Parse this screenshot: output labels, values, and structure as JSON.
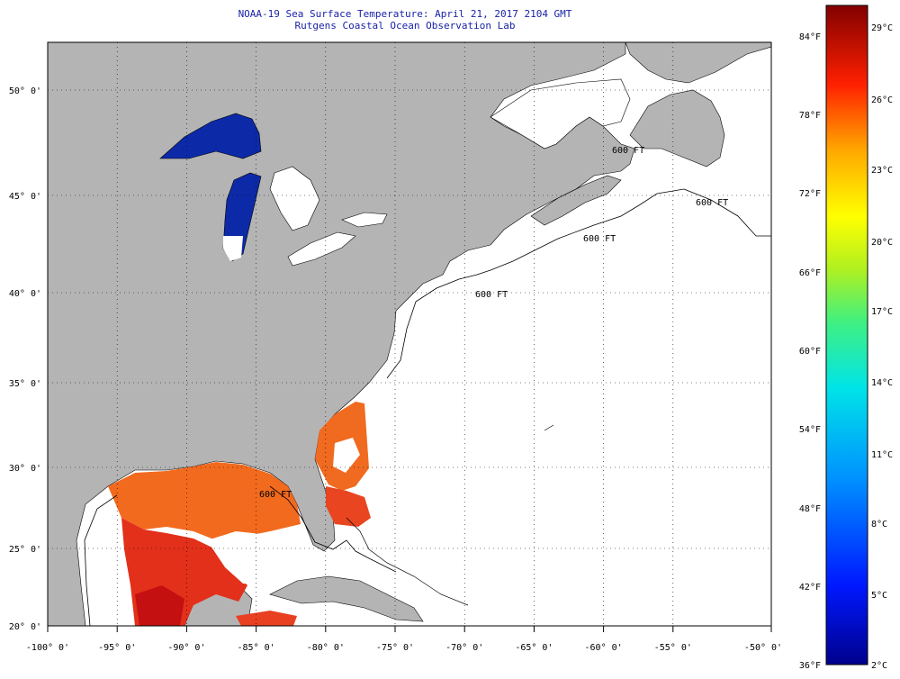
{
  "title": {
    "line1": "NOAA-19 Sea Surface Temperature:  April 21, 2017 2104 GMT",
    "line2": "Rutgens Coastal Ocean Observation Lab"
  },
  "map": {
    "lon_labels": [
      "-100° 0'",
      "-95° 0'",
      "-90° 0'",
      "-85° 0'",
      "-80° 0'",
      "-75° 0'",
      "-70° 0'",
      "-65° 0'",
      "-60° 0'",
      "-55° 0'",
      "-50° 0'"
    ],
    "lat_labels": [
      "50° 0'",
      "45° 0'",
      "40° 0'",
      "35° 0'",
      "30° 0'",
      "25° 0'",
      "20° 0'"
    ],
    "contour_labels": [
      "600 FT",
      "600 FT",
      "600 FT",
      "600 FT",
      "600 FT"
    ],
    "colors": {
      "land": "#b4b4b4",
      "ocean_no_data": "#ffffff",
      "lakes": "#0c2aa8"
    }
  },
  "colorbar": {
    "f_labels": [
      "84°F",
      "78°F",
      "72°F",
      "66°F",
      "60°F",
      "54°F",
      "48°F",
      "42°F",
      "36°F"
    ],
    "c_labels": [
      "29°C",
      "26°C",
      "23°C",
      "20°C",
      "17°C",
      "14°C",
      "11°C",
      "8°C",
      "5°C",
      "2°C"
    ]
  }
}
